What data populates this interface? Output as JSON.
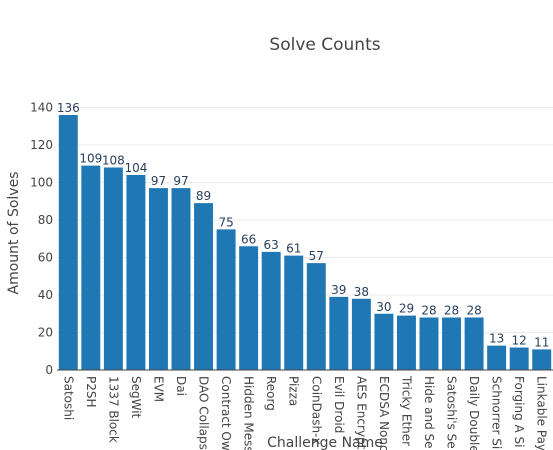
{
  "chart_data": {
    "type": "bar",
    "title": "Solve Counts",
    "xlabel": "Challenge Name",
    "ylabel": "Amount of Solves",
    "ylim": [
      0,
      144
    ],
    "yticks": [
      0,
      20,
      40,
      60,
      80,
      100,
      120,
      140
    ],
    "grid": true,
    "bar_color": "#1f77b4",
    "categories": [
      "Satoshi",
      "P2SH",
      "1337 Block",
      "SegWit",
      "EVM",
      "Dai",
      "DAO Collaps",
      "Contract Ow",
      "Hidden Mess",
      "Reorg",
      "Pizza",
      "CoinDash-x",
      "Evil Droid",
      "AES Encrypt",
      "ECDSA Nonc",
      "Tricky Ether",
      "Hide and Se",
      "Satoshi's Se",
      "Daily Double",
      "Schnorrer Si",
      "Forging A Si",
      "Linkable Pay"
    ],
    "values": [
      136,
      109,
      108,
      104,
      97,
      97,
      89,
      75,
      66,
      63,
      61,
      57,
      39,
      38,
      30,
      29,
      28,
      28,
      28,
      13,
      12,
      11
    ]
  }
}
